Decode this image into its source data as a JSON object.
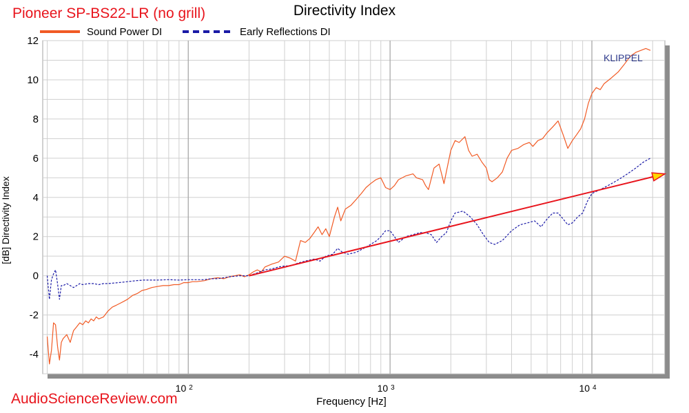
{
  "header": {
    "product_title": "Pioneer SP-BS22-LR (no grill)",
    "watermark": "AudioScienceReview.com",
    "brand": "KLIPPEL"
  },
  "colors": {
    "sound_power": "#f15a24",
    "early_reflections": "#1a1aa6",
    "trend_arrow": "#e8141c",
    "arrow_head_fill": "#ffd700",
    "product_title": "#e8141c",
    "watermark": "#e8141c",
    "brand": "#2e3a8c"
  },
  "chart_data": {
    "type": "line",
    "title": "Directivity Index",
    "xlabel": "Frequency [Hz]",
    "ylabel": "[dB] Directivity Index",
    "xscale": "log",
    "xlim": [
      19,
      23000
    ],
    "ylim": [
      -5,
      12
    ],
    "grid": true,
    "legend": "top-left",
    "yticks": [
      {
        "value": 12,
        "label": "12"
      },
      {
        "value": 10,
        "label": "10"
      },
      {
        "value": 8,
        "label": "8"
      },
      {
        "value": 6,
        "label": "6"
      },
      {
        "value": 4,
        "label": "4"
      },
      {
        "value": 2,
        "label": "2"
      },
      {
        "value": 0,
        "label": "0"
      },
      {
        "value": -2,
        "label": "-2"
      },
      {
        "value": -4,
        "label": "-4"
      }
    ],
    "xticks": [
      {
        "value": 100,
        "base": "10",
        "exp": "2"
      },
      {
        "value": 1000,
        "base": "10",
        "exp": "3"
      },
      {
        "value": 10000,
        "base": "10",
        "exp": "4"
      }
    ],
    "series": [
      {
        "name": "Sound Power DI",
        "color": "#f15a24",
        "dash": "solid",
        "points": [
          [
            20,
            -3.1
          ],
          [
            20.5,
            -4.5
          ],
          [
            21,
            -3.8
          ],
          [
            21.5,
            -2.4
          ],
          [
            22,
            -2.5
          ],
          [
            22.5,
            -3.6
          ],
          [
            23,
            -4.3
          ],
          [
            23.5,
            -3.4
          ],
          [
            24,
            -3.2
          ],
          [
            25,
            -3.0
          ],
          [
            26,
            -3.4
          ],
          [
            27,
            -2.8
          ],
          [
            28,
            -2.6
          ],
          [
            29,
            -2.4
          ],
          [
            30,
            -2.5
          ],
          [
            31,
            -2.3
          ],
          [
            32,
            -2.4
          ],
          [
            33,
            -2.2
          ],
          [
            34,
            -2.3
          ],
          [
            35,
            -2.1
          ],
          [
            36,
            -2.2
          ],
          [
            38,
            -2.1
          ],
          [
            40,
            -1.8
          ],
          [
            42,
            -1.6
          ],
          [
            44,
            -1.5
          ],
          [
            46,
            -1.4
          ],
          [
            48,
            -1.3
          ],
          [
            50,
            -1.2
          ],
          [
            53,
            -1.0
          ],
          [
            56,
            -0.9
          ],
          [
            59,
            -0.75
          ],
          [
            62,
            -0.7
          ],
          [
            66,
            -0.6
          ],
          [
            70,
            -0.55
          ],
          [
            75,
            -0.5
          ],
          [
            80,
            -0.5
          ],
          [
            85,
            -0.45
          ],
          [
            90,
            -0.45
          ],
          [
            95,
            -0.35
          ],
          [
            100,
            -0.35
          ],
          [
            105,
            -0.3
          ],
          [
            110,
            -0.3
          ],
          [
            120,
            -0.25
          ],
          [
            130,
            -0.15
          ],
          [
            140,
            -0.1
          ],
          [
            150,
            -0.15
          ],
          [
            160,
            -0.05
          ],
          [
            170,
            0.0
          ],
          [
            180,
            0.05
          ],
          [
            190,
            -0.05
          ],
          [
            200,
            0.05
          ],
          [
            210,
            0.2
          ],
          [
            220,
            0.3
          ],
          [
            230,
            0.2
          ],
          [
            240,
            0.45
          ],
          [
            260,
            0.6
          ],
          [
            280,
            0.7
          ],
          [
            300,
            1.0
          ],
          [
            320,
            0.9
          ],
          [
            340,
            0.75
          ],
          [
            360,
            1.8
          ],
          [
            380,
            1.7
          ],
          [
            400,
            1.9
          ],
          [
            420,
            2.2
          ],
          [
            440,
            2.5
          ],
          [
            460,
            2.1
          ],
          [
            480,
            2.4
          ],
          [
            500,
            2.0
          ],
          [
            530,
            3.0
          ],
          [
            550,
            3.5
          ],
          [
            570,
            2.8
          ],
          [
            600,
            3.4
          ],
          [
            640,
            3.6
          ],
          [
            680,
            3.9
          ],
          [
            720,
            4.2
          ],
          [
            760,
            4.5
          ],
          [
            800,
            4.7
          ],
          [
            850,
            4.9
          ],
          [
            900,
            5.0
          ],
          [
            950,
            4.5
          ],
          [
            1000,
            4.4
          ],
          [
            1050,
            4.6
          ],
          [
            1100,
            4.9
          ],
          [
            1200,
            5.1
          ],
          [
            1300,
            5.2
          ],
          [
            1350,
            5.0
          ],
          [
            1450,
            4.9
          ],
          [
            1500,
            4.6
          ],
          [
            1550,
            4.4
          ],
          [
            1650,
            5.5
          ],
          [
            1750,
            5.7
          ],
          [
            1800,
            5.2
          ],
          [
            1850,
            4.7
          ],
          [
            1900,
            5.3
          ],
          [
            2000,
            6.4
          ],
          [
            2100,
            6.9
          ],
          [
            2200,
            6.8
          ],
          [
            2350,
            7.1
          ],
          [
            2450,
            6.4
          ],
          [
            2550,
            6.1
          ],
          [
            2700,
            6.2
          ],
          [
            2850,
            5.8
          ],
          [
            3000,
            5.5
          ],
          [
            3100,
            4.9
          ],
          [
            3200,
            4.8
          ],
          [
            3400,
            5.0
          ],
          [
            3600,
            5.3
          ],
          [
            3800,
            6.0
          ],
          [
            4000,
            6.4
          ],
          [
            4300,
            6.5
          ],
          [
            4600,
            6.7
          ],
          [
            4900,
            6.8
          ],
          [
            5100,
            6.6
          ],
          [
            5400,
            6.9
          ],
          [
            5700,
            7.0
          ],
          [
            6000,
            7.3
          ],
          [
            6400,
            7.6
          ],
          [
            6800,
            7.9
          ],
          [
            7200,
            7.2
          ],
          [
            7600,
            6.5
          ],
          [
            8000,
            6.9
          ],
          [
            8400,
            7.2
          ],
          [
            8800,
            7.5
          ],
          [
            9200,
            8.0
          ],
          [
            9600,
            8.8
          ],
          [
            10000,
            9.3
          ],
          [
            10500,
            9.6
          ],
          [
            11000,
            9.5
          ],
          [
            11500,
            9.8
          ],
          [
            12500,
            10.1
          ],
          [
            13500,
            10.4
          ],
          [
            14500,
            10.8
          ],
          [
            15500,
            11.2
          ],
          [
            16500,
            11.4
          ],
          [
            17500,
            11.5
          ],
          [
            18500,
            11.6
          ],
          [
            19500,
            11.5
          ]
        ]
      },
      {
        "name": "Early Reflections DI",
        "color": "#1a1aa6",
        "dash": "dashed",
        "points": [
          [
            20,
            0.0
          ],
          [
            20.5,
            -1.2
          ],
          [
            21,
            -0.2
          ],
          [
            21.5,
            0.1
          ],
          [
            22,
            0.3
          ],
          [
            22.5,
            -0.4
          ],
          [
            23,
            -1.2
          ],
          [
            23.5,
            -0.5
          ],
          [
            24,
            -0.5
          ],
          [
            25,
            -0.4
          ],
          [
            26,
            -0.5
          ],
          [
            27,
            -0.6
          ],
          [
            28,
            -0.5
          ],
          [
            29,
            -0.4
          ],
          [
            30,
            -0.45
          ],
          [
            32,
            -0.4
          ],
          [
            34,
            -0.4
          ],
          [
            36,
            -0.45
          ],
          [
            38,
            -0.4
          ],
          [
            40,
            -0.4
          ],
          [
            45,
            -0.35
          ],
          [
            50,
            -0.3
          ],
          [
            55,
            -0.25
          ],
          [
            60,
            -0.22
          ],
          [
            70,
            -0.22
          ],
          [
            80,
            -0.2
          ],
          [
            90,
            -0.22
          ],
          [
            100,
            -0.2
          ],
          [
            110,
            -0.2
          ],
          [
            120,
            -0.2
          ],
          [
            130,
            -0.15
          ],
          [
            140,
            -0.15
          ],
          [
            150,
            -0.1
          ],
          [
            160,
            -0.05
          ],
          [
            180,
            0.0
          ],
          [
            200,
            0.0
          ],
          [
            220,
            0.15
          ],
          [
            240,
            0.3
          ],
          [
            260,
            0.35
          ],
          [
            280,
            0.45
          ],
          [
            300,
            0.5
          ],
          [
            320,
            0.5
          ],
          [
            350,
            0.65
          ],
          [
            380,
            0.75
          ],
          [
            420,
            0.85
          ],
          [
            450,
            0.75
          ],
          [
            480,
            1.0
          ],
          [
            520,
            1.1
          ],
          [
            550,
            1.4
          ],
          [
            580,
            1.2
          ],
          [
            620,
            1.1
          ],
          [
            680,
            1.2
          ],
          [
            740,
            1.4
          ],
          [
            800,
            1.6
          ],
          [
            860,
            1.8
          ],
          [
            900,
            2.0
          ],
          [
            950,
            2.3
          ],
          [
            1000,
            2.3
          ],
          [
            1050,
            2.0
          ],
          [
            1100,
            1.7
          ],
          [
            1200,
            2.0
          ],
          [
            1300,
            2.1
          ],
          [
            1400,
            2.2
          ],
          [
            1500,
            2.2
          ],
          [
            1600,
            2.1
          ],
          [
            1700,
            1.7
          ],
          [
            1800,
            2.0
          ],
          [
            1900,
            2.2
          ],
          [
            2000,
            2.8
          ],
          [
            2100,
            3.2
          ],
          [
            2300,
            3.3
          ],
          [
            2500,
            3.0
          ],
          [
            2700,
            2.6
          ],
          [
            2900,
            2.1
          ],
          [
            3100,
            1.7
          ],
          [
            3300,
            1.6
          ],
          [
            3600,
            1.8
          ],
          [
            4000,
            2.3
          ],
          [
            4400,
            2.6
          ],
          [
            4800,
            2.7
          ],
          [
            5200,
            2.8
          ],
          [
            5600,
            2.5
          ],
          [
            6000,
            2.9
          ],
          [
            6400,
            3.2
          ],
          [
            6800,
            3.2
          ],
          [
            7200,
            2.9
          ],
          [
            7600,
            2.6
          ],
          [
            8000,
            2.7
          ],
          [
            8500,
            3.0
          ],
          [
            9000,
            3.2
          ],
          [
            9500,
            3.8
          ],
          [
            10000,
            4.2
          ],
          [
            11000,
            4.4
          ],
          [
            12000,
            4.6
          ],
          [
            13000,
            4.8
          ],
          [
            14000,
            5.0
          ],
          [
            15000,
            5.2
          ],
          [
            16500,
            5.5
          ],
          [
            18000,
            5.8
          ],
          [
            19500,
            6.0
          ]
        ]
      }
    ],
    "trend_line": {
      "from": [
        200,
        0.0
      ],
      "to": [
        23000,
        5.2
      ]
    }
  }
}
